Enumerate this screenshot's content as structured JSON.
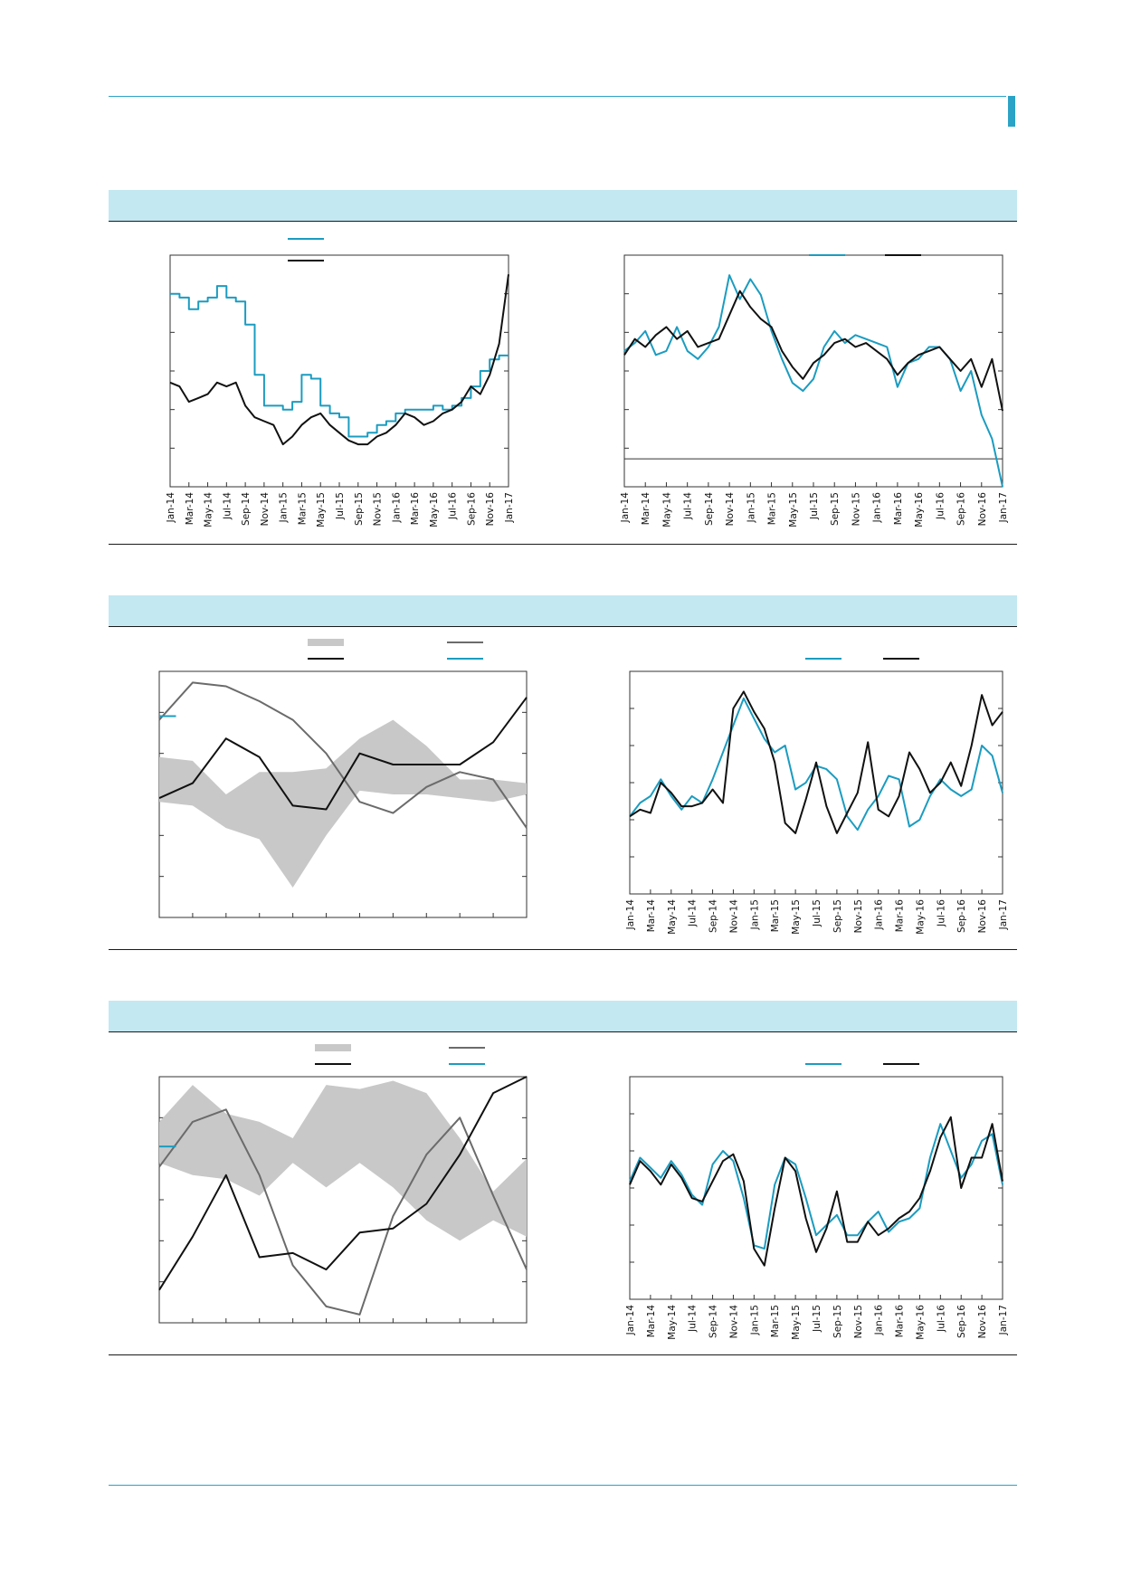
{
  "page": {
    "accent_color": "#2ba3c6",
    "band_color": "#c3e8f2"
  },
  "colors": {
    "teal": "#1b9cc0",
    "black": "#111111",
    "gray_line": "#6b6b6b",
    "gray_band": "#c8c8c8"
  },
  "sections": [
    {
      "charts": [
        {
          "chart_data": {
            "type": "line",
            "title": "",
            "xlabel": "",
            "ylabel": "",
            "ylim": [
              0,
              6
            ],
            "grid": false,
            "legend": "top-center",
            "tick_labels": [
              "Jan-14",
              "Mar-14",
              "May-14",
              "Jul-14",
              "Sep-14",
              "Nov-14",
              "Jan-15",
              "Mar-15",
              "May-15",
              "Jul-15",
              "Sep-15",
              "Nov-15",
              "Jan-16",
              "Mar-16",
              "May-16",
              "Jul-16",
              "Sep-16",
              "Nov-16",
              "Jan-17"
            ],
            "x": [
              0,
              1,
              2,
              3,
              4,
              5,
              6,
              7,
              8,
              9,
              10,
              11,
              12,
              13,
              14,
              15,
              16,
              17,
              18,
              19,
              20,
              21,
              22,
              23,
              24,
              25,
              26,
              27,
              28,
              29,
              30,
              31,
              32,
              33,
              34,
              35,
              36
            ],
            "series": [
              {
                "color": "teal",
                "step": true,
                "values": [
                  5.0,
                  4.9,
                  4.6,
                  4.8,
                  4.9,
                  5.2,
                  4.9,
                  4.8,
                  4.2,
                  2.9,
                  2.1,
                  2.1,
                  2.0,
                  2.2,
                  2.9,
                  2.8,
                  2.1,
                  1.9,
                  1.8,
                  1.3,
                  1.3,
                  1.4,
                  1.6,
                  1.7,
                  1.9,
                  2.0,
                  2.0,
                  2.0,
                  2.1,
                  2.0,
                  2.1,
                  2.3,
                  2.6,
                  3.0,
                  3.3,
                  3.4,
                  3.4
                ]
              },
              {
                "color": "black",
                "step": false,
                "values": [
                  2.7,
                  2.6,
                  2.2,
                  2.3,
                  2.4,
                  2.7,
                  2.6,
                  2.7,
                  2.1,
                  1.8,
                  1.7,
                  1.6,
                  1.1,
                  1.3,
                  1.6,
                  1.8,
                  1.9,
                  1.6,
                  1.4,
                  1.2,
                  1.1,
                  1.1,
                  1.3,
                  1.4,
                  1.6,
                  1.9,
                  1.8,
                  1.6,
                  1.7,
                  1.9,
                  2.0,
                  2.2,
                  2.6,
                  2.4,
                  2.9,
                  3.7,
                  5.5
                ]
              }
            ]
          }
        },
        {
          "chart_data": {
            "type": "line",
            "title": "",
            "xlabel": "",
            "ylabel": "",
            "ylim": [
              -0.7,
              5.1
            ],
            "zero_line": true,
            "grid": false,
            "legend": "top-right",
            "tick_labels": [
              "Jan-14",
              "Mar-14",
              "May-14",
              "Jul-14",
              "Sep-14",
              "Nov-14",
              "Jan-15",
              "Mar-15",
              "May-15",
              "Jul-15",
              "Sep-15",
              "Nov-15",
              "Jan-16",
              "Mar-16",
              "May-16",
              "Jul-16",
              "Sep-16",
              "Nov-16",
              "Jan-17"
            ],
            "x": [
              0,
              1,
              2,
              3,
              4,
              5,
              6,
              7,
              8,
              9,
              10,
              11,
              12,
              13,
              14,
              15,
              16,
              17,
              18,
              19,
              20,
              21,
              22,
              23,
              24,
              25,
              26,
              27,
              28,
              29,
              30,
              31,
              32,
              33,
              34,
              35,
              36
            ],
            "series": [
              {
                "color": "teal",
                "values": [
                  2.7,
                  2.9,
                  3.2,
                  2.6,
                  2.7,
                  3.3,
                  2.7,
                  2.5,
                  2.8,
                  3.3,
                  4.6,
                  4.0,
                  4.5,
                  4.1,
                  3.2,
                  2.5,
                  1.9,
                  1.7,
                  2.0,
                  2.8,
                  3.2,
                  2.9,
                  3.1,
                  3.0,
                  2.9,
                  2.8,
                  1.8,
                  2.4,
                  2.5,
                  2.8,
                  2.8,
                  2.5,
                  1.7,
                  2.2,
                  1.1,
                  0.5,
                  -0.7
                ]
              },
              {
                "color": "black",
                "values": [
                  2.6,
                  3.0,
                  2.8,
                  3.1,
                  3.3,
                  3.0,
                  3.2,
                  2.8,
                  2.9,
                  3.0,
                  3.6,
                  4.2,
                  3.8,
                  3.5,
                  3.3,
                  2.7,
                  2.3,
                  2.0,
                  2.4,
                  2.6,
                  2.9,
                  3.0,
                  2.8,
                  2.9,
                  2.7,
                  2.5,
                  2.1,
                  2.4,
                  2.6,
                  2.7,
                  2.8,
                  2.5,
                  2.2,
                  2.5,
                  1.8,
                  2.5,
                  1.2
                ]
              }
            ]
          }
        }
      ]
    },
    {
      "charts": [
        {
          "chart_data": {
            "type": "area",
            "title": "",
            "xlabel": "",
            "ylabel": "",
            "ylim": [
              0,
              6.6
            ],
            "grid": false,
            "legend": "top-center",
            "x": [
              0,
              1,
              2,
              3,
              4,
              5,
              6,
              7,
              8,
              9,
              10,
              11
            ],
            "band": {
              "color": "gray_band",
              "low": [
                3.1,
                3.0,
                2.4,
                2.1,
                0.8,
                2.2,
                3.4,
                3.3,
                3.3,
                3.2,
                3.1,
                3.3
              ],
              "high": [
                4.3,
                4.2,
                3.3,
                3.9,
                3.9,
                4.0,
                4.8,
                5.3,
                4.6,
                3.7,
                3.7,
                3.6
              ]
            },
            "series": [
              {
                "color": "gray_line",
                "values": [
                  5.3,
                  6.3,
                  6.2,
                  5.8,
                  5.3,
                  4.4,
                  3.1,
                  2.8,
                  3.5,
                  3.9,
                  3.7,
                  2.4
                ]
              },
              {
                "color": "black",
                "values": [
                  3.2,
                  3.6,
                  4.8,
                  4.3,
                  3.0,
                  2.9,
                  4.4,
                  4.1,
                  4.1,
                  4.1,
                  4.7,
                  5.9
                ]
              },
              {
                "color": "teal",
                "values": [
                  5.4,
                  5.4
                ],
                "x": [
                  0,
                  0.5
                ]
              }
            ]
          }
        },
        {
          "chart_data": {
            "type": "line",
            "title": "",
            "xlabel": "",
            "ylabel": "",
            "ylim": [
              0,
              6.6
            ],
            "grid": false,
            "legend": "top-right",
            "tick_labels": [
              "Jan-14",
              "Mar-14",
              "May-14",
              "Jul-14",
              "Sep-14",
              "Nov-14",
              "Jan-15",
              "Mar-15",
              "May-15",
              "Jul-15",
              "Sep-15",
              "Nov-15",
              "Jan-16",
              "Mar-16",
              "May-16",
              "Jul-16",
              "Sep-16",
              "Nov-16",
              "Jan-17"
            ],
            "x": [
              0,
              1,
              2,
              3,
              4,
              5,
              6,
              7,
              8,
              9,
              10,
              11,
              12,
              13,
              14,
              15,
              16,
              17,
              18,
              19,
              20,
              21,
              22,
              23,
              24,
              25,
              26,
              27,
              28,
              29,
              30,
              31,
              32,
              33,
              34,
              35,
              36
            ],
            "series": [
              {
                "color": "teal",
                "values": [
                  2.3,
                  2.7,
                  2.9,
                  3.4,
                  2.9,
                  2.5,
                  2.9,
                  2.7,
                  3.4,
                  4.2,
                  5.0,
                  5.8,
                  5.2,
                  4.6,
                  4.2,
                  4.4,
                  3.1,
                  3.3,
                  3.8,
                  3.7,
                  3.4,
                  2.3,
                  1.9,
                  2.5,
                  2.9,
                  3.5,
                  3.4,
                  2.0,
                  2.2,
                  2.9,
                  3.4,
                  3.1,
                  2.9,
                  3.1,
                  4.4,
                  4.1,
                  3.0
                ]
              },
              {
                "color": "black",
                "values": [
                  2.3,
                  2.5,
                  2.4,
                  3.3,
                  3.0,
                  2.6,
                  2.6,
                  2.7,
                  3.1,
                  2.7,
                  5.5,
                  6.0,
                  5.4,
                  4.9,
                  3.9,
                  2.1,
                  1.8,
                  2.8,
                  3.9,
                  2.6,
                  1.8,
                  2.4,
                  3.0,
                  4.5,
                  2.5,
                  2.3,
                  2.9,
                  4.2,
                  3.7,
                  3.0,
                  3.3,
                  3.9,
                  3.2,
                  4.4,
                  5.9,
                  5.0,
                  5.4
                ]
              }
            ]
          }
        }
      ]
    },
    {
      "charts": [
        {
          "chart_data": {
            "type": "area",
            "title": "",
            "xlabel": "",
            "ylabel": "",
            "ylim": [
              0,
              6
            ],
            "grid": false,
            "legend": "top-center",
            "x": [
              0,
              1,
              2,
              3,
              4,
              5,
              6,
              7,
              8,
              9,
              10,
              11
            ],
            "band": {
              "color": "gray_band",
              "low": [
                3.9,
                3.6,
                3.5,
                3.1,
                3.9,
                3.3,
                3.9,
                3.3,
                2.5,
                2.0,
                2.5,
                2.1
              ],
              "high": [
                4.9,
                5.8,
                5.1,
                4.9,
                4.5,
                5.8,
                5.7,
                5.9,
                5.6,
                4.5,
                3.2,
                4.0
              ]
            },
            "series": [
              {
                "color": "gray_line",
                "values": [
                  3.8,
                  4.9,
                  5.2,
                  3.6,
                  1.4,
                  0.4,
                  0.2,
                  2.6,
                  4.1,
                  5.0,
                  3.1,
                  1.3
                ]
              },
              {
                "color": "black",
                "values": [
                  0.8,
                  2.1,
                  3.6,
                  1.6,
                  1.7,
                  1.3,
                  2.2,
                  2.3,
                  2.9,
                  4.1,
                  5.6,
                  6.0
                ]
              },
              {
                "color": "teal",
                "values": [
                  4.3,
                  4.3
                ],
                "x": [
                  0,
                  0.5
                ]
              }
            ]
          }
        },
        {
          "chart_data": {
            "type": "line",
            "title": "",
            "xlabel": "",
            "ylabel": "",
            "ylim": [
              0,
              6.6
            ],
            "grid": false,
            "legend": "top-right",
            "tick_labels": [
              "Jan-14",
              "Mar-14",
              "May-14",
              "Jul-14",
              "Sep-14",
              "Nov-14",
              "Jan-15",
              "Mar-15",
              "May-15",
              "Jul-15",
              "Sep-15",
              "Nov-15",
              "Jan-16",
              "Mar-16",
              "May-16",
              "Jul-16",
              "Sep-16",
              "Nov-16",
              "Jan-17"
            ],
            "x": [
              0,
              1,
              2,
              3,
              4,
              5,
              6,
              7,
              8,
              9,
              10,
              11,
              12,
              13,
              14,
              15,
              16,
              17,
              18,
              19,
              20,
              21,
              22,
              23,
              24,
              25,
              26,
              27,
              28,
              29,
              30,
              31,
              32,
              33,
              34,
              35,
              36
            ],
            "series": [
              {
                "color": "teal",
                "values": [
                  3.5,
                  4.2,
                  3.9,
                  3.6,
                  4.1,
                  3.7,
                  3.1,
                  2.8,
                  4.0,
                  4.4,
                  4.1,
                  3.0,
                  1.6,
                  1.5,
                  3.4,
                  4.2,
                  4.0,
                  3.0,
                  1.9,
                  2.2,
                  2.5,
                  1.9,
                  1.9,
                  2.3,
                  2.6,
                  2.0,
                  2.3,
                  2.4,
                  2.7,
                  4.2,
                  5.2,
                  4.4,
                  3.6,
                  4.0,
                  4.7,
                  4.9,
                  3.4
                ]
              },
              {
                "color": "black",
                "values": [
                  3.4,
                  4.1,
                  3.8,
                  3.4,
                  4.0,
                  3.6,
                  3.0,
                  2.9,
                  3.5,
                  4.1,
                  4.3,
                  3.5,
                  1.5,
                  1.0,
                  2.7,
                  4.2,
                  3.8,
                  2.4,
                  1.4,
                  2.1,
                  3.2,
                  1.7,
                  1.7,
                  2.3,
                  1.9,
                  2.1,
                  2.4,
                  2.6,
                  3.0,
                  3.8,
                  4.8,
                  5.4,
                  3.3,
                  4.2,
                  4.2,
                  5.2,
                  3.5
                ]
              }
            ]
          }
        }
      ]
    }
  ]
}
